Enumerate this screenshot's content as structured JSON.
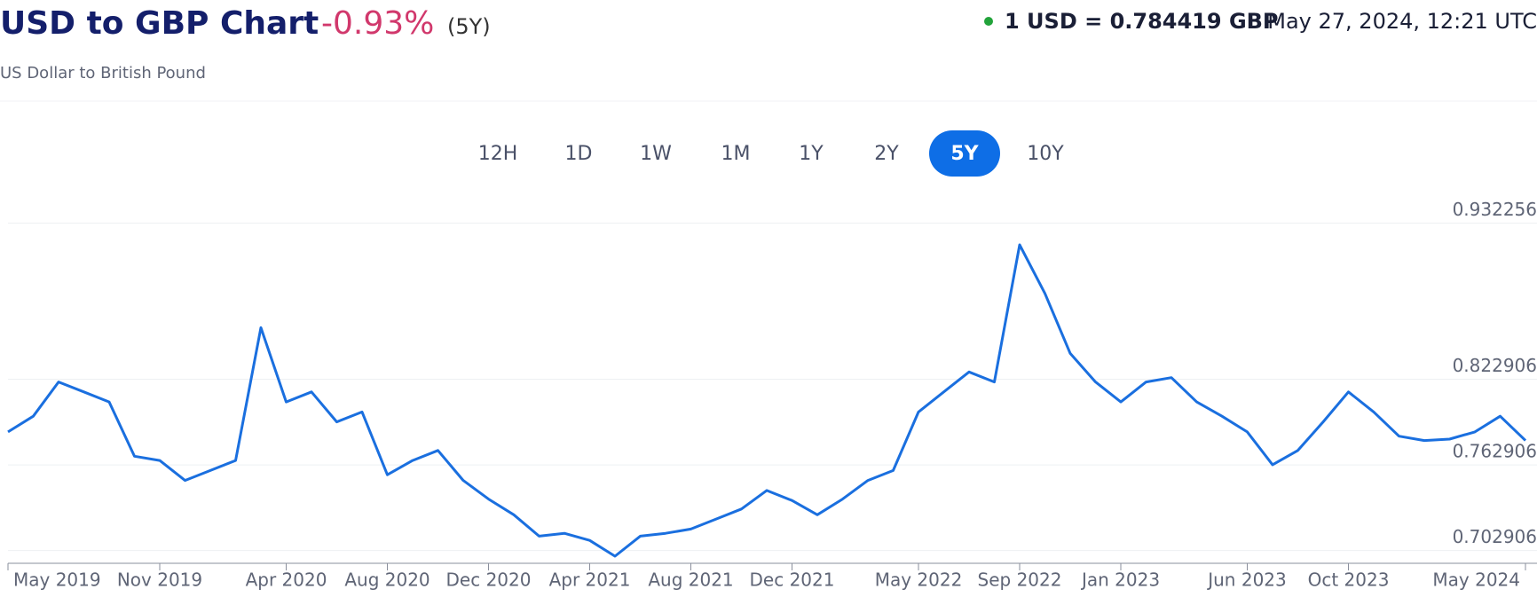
{
  "header": {
    "title": "USD to GBP Chart",
    "change": "-0.93%",
    "period": "(5Y)",
    "rate": "1 USD = 0.784419 GBP",
    "timestamp": "May 27, 2024, 12:21 UTC",
    "subtitle": "US Dollar to British Pound"
  },
  "ranges": {
    "buttons": [
      "12H",
      "1D",
      "1W",
      "1M",
      "1Y",
      "2Y",
      "5Y",
      "10Y"
    ],
    "active": "5Y"
  },
  "chart_data": {
    "type": "line",
    "x": [
      "2019-05",
      "2019-06",
      "2019-07",
      "2019-08",
      "2019-09",
      "2019-10",
      "2019-11",
      "2019-12",
      "2020-01",
      "2020-02",
      "2020-03",
      "2020-04",
      "2020-05",
      "2020-06",
      "2020-07",
      "2020-08",
      "2020-09",
      "2020-10",
      "2020-11",
      "2020-12",
      "2021-01",
      "2021-02",
      "2021-03",
      "2021-04",
      "2021-05",
      "2021-06",
      "2021-07",
      "2021-08",
      "2021-09",
      "2021-10",
      "2021-11",
      "2021-12",
      "2022-01",
      "2022-02",
      "2022-03",
      "2022-04",
      "2022-05",
      "2022-06",
      "2022-07",
      "2022-08",
      "2022-09",
      "2022-10",
      "2022-11",
      "2022-12",
      "2023-01",
      "2023-02",
      "2023-03",
      "2023-04",
      "2023-05",
      "2023-06",
      "2023-07",
      "2023-08",
      "2023-09",
      "2023-10",
      "2023-11",
      "2023-12",
      "2024-01",
      "2024-02",
      "2024-03",
      "2024-04",
      "2024-05"
    ],
    "series": [
      {
        "name": "USD/GBP",
        "color": "#1a6fdf",
        "values": [
          0.786,
          0.797,
          0.821,
          0.814,
          0.807,
          0.769,
          0.766,
          0.752,
          0.759,
          0.766,
          0.859,
          0.807,
          0.814,
          0.793,
          0.8,
          0.756,
          0.766,
          0.773,
          0.752,
          0.739,
          0.728,
          0.713,
          0.715,
          0.71,
          0.699,
          0.713,
          0.715,
          0.718,
          0.725,
          0.732,
          0.745,
          0.738,
          0.728,
          0.739,
          0.752,
          0.759,
          0.8,
          0.814,
          0.828,
          0.821,
          0.917,
          0.883,
          0.841,
          0.821,
          0.807,
          0.821,
          0.824,
          0.807,
          0.797,
          0.786,
          0.763,
          0.773,
          0.793,
          0.814,
          0.8,
          0.783,
          0.78,
          0.781,
          0.786,
          0.797,
          0.78
        ]
      }
    ],
    "ylim": [
      0.694,
      0.94
    ],
    "yticks": [
      0.702906,
      0.762906,
      0.822906,
      0.932256
    ],
    "xticks": [
      {
        "value": "2019-05",
        "label": "May 2019"
      },
      {
        "value": "2019-11",
        "label": "Nov 2019"
      },
      {
        "value": "2020-04",
        "label": "Apr 2020"
      },
      {
        "value": "2020-08",
        "label": "Aug 2020"
      },
      {
        "value": "2020-12",
        "label": "Dec 2020"
      },
      {
        "value": "2021-04",
        "label": "Apr 2021"
      },
      {
        "value": "2021-08",
        "label": "Aug 2021"
      },
      {
        "value": "2021-12",
        "label": "Dec 2021"
      },
      {
        "value": "2022-05",
        "label": "May 2022"
      },
      {
        "value": "2022-09",
        "label": "Sep 2022"
      },
      {
        "value": "2023-01",
        "label": "Jan 2023"
      },
      {
        "value": "2023-06",
        "label": "Jun 2023"
      },
      {
        "value": "2023-10",
        "label": "Oct 2023"
      },
      {
        "value": "2024-05",
        "label": "May 2024"
      }
    ],
    "grid": true
  }
}
